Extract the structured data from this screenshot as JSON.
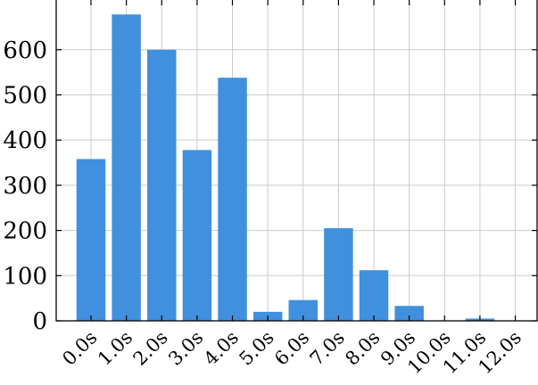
{
  "chart_data": {
    "type": "bar",
    "title": "",
    "xlabel": "",
    "ylabel": "",
    "categories": [
      "0.0s",
      "1.0s",
      "2.0s",
      "3.0s",
      "4.0s",
      "5.0s",
      "6.0s",
      "7.0s",
      "8.0s",
      "9.0s",
      "10.0s",
      "11.0s",
      "12.0s"
    ],
    "values": [
      358,
      678,
      600,
      378,
      538,
      20,
      46,
      205,
      112,
      33,
      0,
      5,
      0
    ],
    "ylim": [
      0,
      710
    ],
    "yticks": [
      0,
      100,
      200,
      300,
      400,
      500,
      600
    ],
    "ytick_labels": [
      "0",
      "100",
      "200",
      "300",
      "400",
      "500",
      "600"
    ],
    "grid": true,
    "bar_color": "#4190dd",
    "grid_color": "#cccccc"
  }
}
